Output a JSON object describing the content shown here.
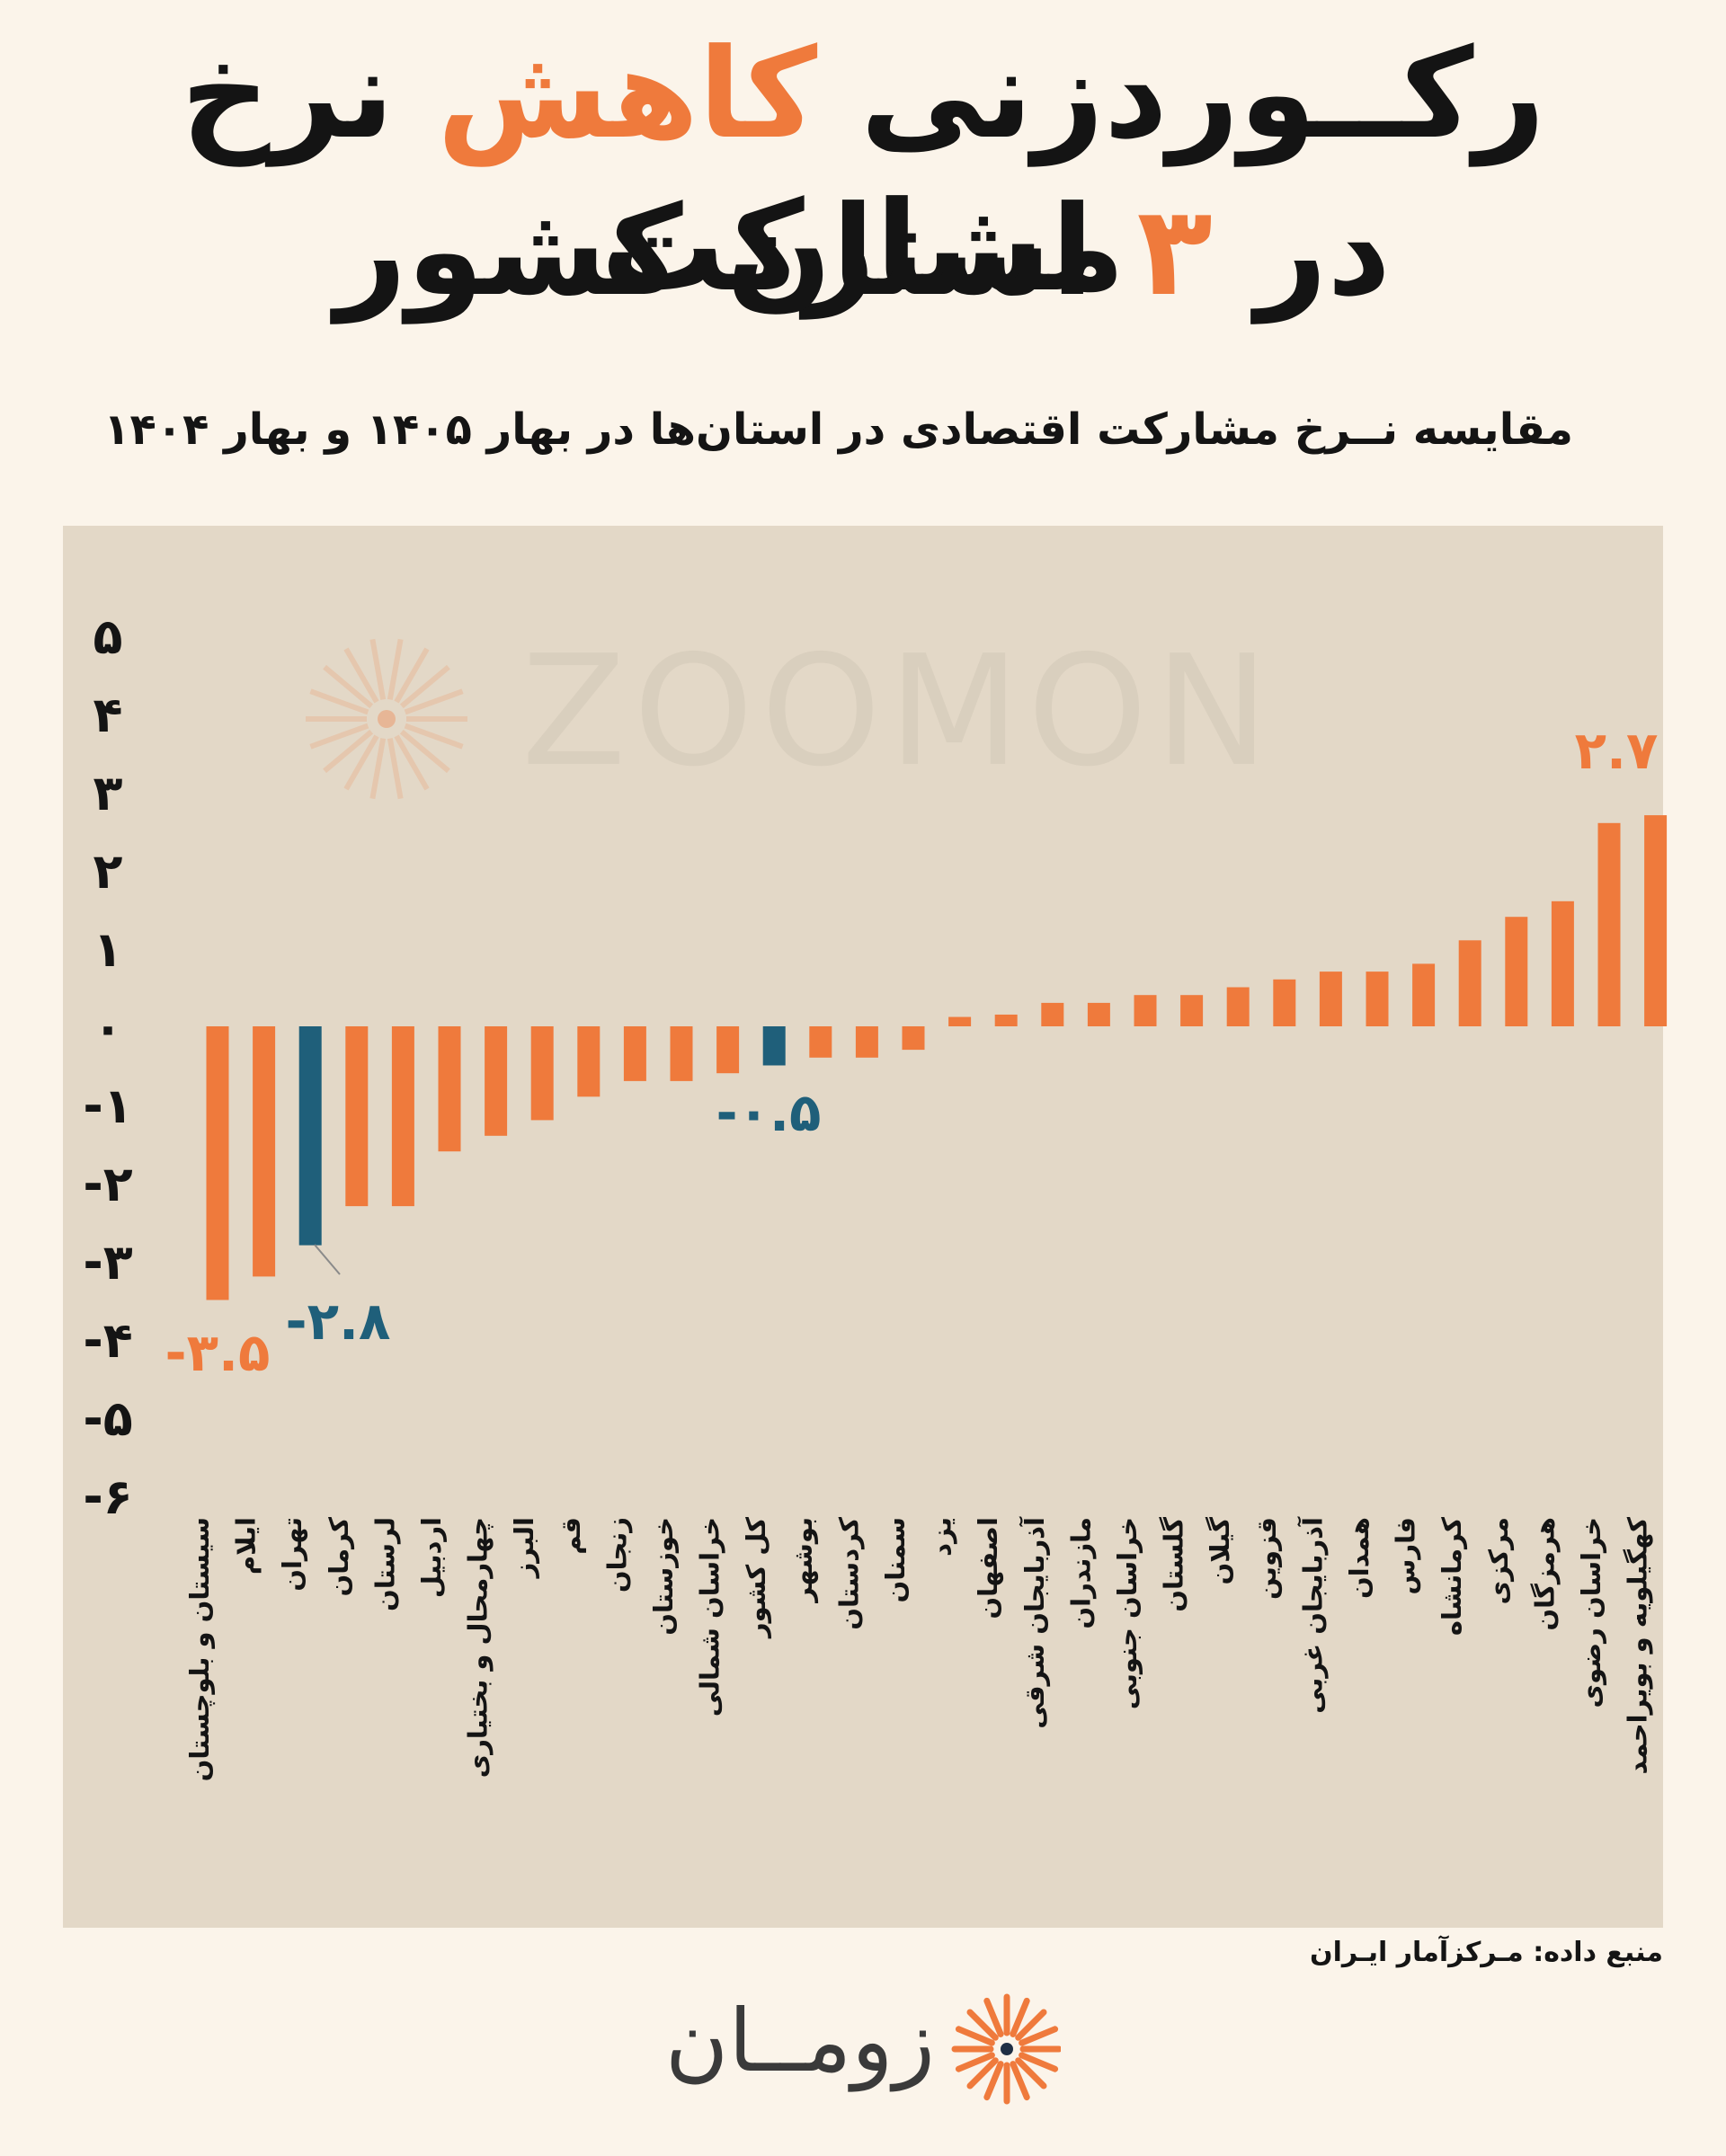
{
  "title": {
    "line1_before": "رکــوردزنی ",
    "line1_highlight": "کاهش",
    "line1_after": " نرخ مشارکت",
    "line2_before": "در ",
    "line2_highlight": "۳",
    "line2_after": " استان کشور"
  },
  "subtitle": "مقایسه نــرخ مشارکت اقتصادی در استان‌ها در بهار ۱۴۰۵ و بهار ۱۴۰۴",
  "source": "منبع داده: مـرکزآمار ایـران",
  "logo": {
    "text": "زومــان",
    "icon": "sunburst-logo-icon"
  },
  "watermark": "ZOOMON",
  "colors": {
    "positive": "#ef7a3c",
    "highlight": "#1f5f7a",
    "panel": "#e3d8c7",
    "background": "#fbf4ea"
  },
  "chart_data": {
    "type": "bar",
    "ylim": [
      -6,
      5
    ],
    "yticks": [
      5,
      4,
      3,
      2,
      1,
      0,
      -1,
      -2,
      -3,
      -4,
      -5,
      -6
    ],
    "ytick_labels": [
      "۵",
      "۴",
      "۳",
      "۲",
      "۱",
      "۰",
      "-۱",
      "-۲",
      "-۳",
      "-۴",
      "-۵",
      "-۶"
    ],
    "categories": [
      "سیستان و بلوچستان",
      "ایلام",
      "تهران",
      "کرمان",
      "لرستان",
      "اردبیل",
      "چهارمحال و بختیاری",
      "البرز",
      "قم",
      "زنجان",
      "خوزستان",
      "خراسان شمالی",
      "کل کشور",
      "بوشهر",
      "کردستان",
      "سمنان",
      "یزد",
      "اصفهان",
      "آذربایجان شرقی",
      "مازندران",
      "خراسان جنوبی",
      "گلستان",
      "گیلان",
      "قزوین",
      "آذربایجان غربی",
      "همدان",
      "فارس",
      "کرمانشاه",
      "مرکزی",
      "هرمزگان",
      "خراسان رضوی",
      "کهگیلویه و بویراحمد"
    ],
    "values": [
      -3.5,
      -3.2,
      -2.8,
      -2.3,
      -2.3,
      -1.6,
      -1.4,
      -1.2,
      -0.9,
      -0.7,
      -0.7,
      -0.6,
      -0.5,
      -0.4,
      -0.4,
      -0.3,
      0.0,
      0.15,
      0.3,
      0.3,
      0.4,
      0.4,
      0.5,
      0.6,
      0.7,
      0.7,
      0.8,
      1.1,
      1.4,
      1.6,
      2.6,
      2.7
    ],
    "highlighted": [
      "تهران",
      "کل کشور"
    ],
    "data_labels": [
      {
        "category": "سیستان و بلوچستان",
        "text": "-۳.۵"
      },
      {
        "category": "تهران",
        "text": "-۲.۸"
      },
      {
        "category": "کل کشور",
        "text": "-۰.۵"
      },
      {
        "category": "کهگیلویه و بویراحمد",
        "text": "۲.۷"
      }
    ]
  }
}
